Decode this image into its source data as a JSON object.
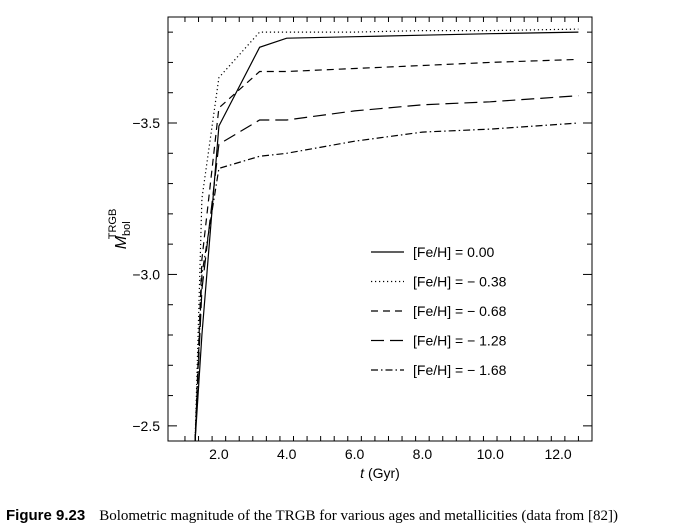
{
  "caption": {
    "label": "Figure 9.23",
    "text": "Bolometric magnitude of the TRGB for various ages and metallicities (data from [82])"
  },
  "chart_data": {
    "type": "line",
    "title": "",
    "xlabel_var": "t",
    "xlabel_unit": " (Gyr)",
    "ylabel_var": "M",
    "ylabel_sub": "bol",
    "ylabel_sup": "TRGB",
    "xlim": [
      0.5,
      13.0
    ],
    "ylim": [
      -2.45,
      -3.85
    ],
    "y_reversed": true,
    "xticks": [
      2.0,
      4.0,
      6.0,
      8.0,
      10.0,
      12.0
    ],
    "xtick_labels": [
      "2.0",
      "4.0",
      "6.0",
      "8.0",
      "10.0",
      "12.0"
    ],
    "yticks": [
      -2.5,
      -3.0,
      -3.5
    ],
    "ytick_labels": [
      "−2.5",
      "−3.0",
      "−3.5"
    ],
    "grid": false,
    "legend_position": "center-right",
    "series": [
      {
        "name": "[Fe/H] = 0.00",
        "dash": "solid",
        "x": [
          1.3,
          1.5,
          2.0,
          3.2,
          4.0,
          6.0,
          8.0,
          10.0,
          12.6
        ],
        "y": [
          -2.45,
          -2.8,
          -3.49,
          -3.75,
          -3.78,
          -3.785,
          -3.79,
          -3.795,
          -3.8
        ]
      },
      {
        "name": "[Fe/H] = − 0.38",
        "dash": "dotted",
        "x": [
          1.3,
          1.5,
          2.0,
          3.2,
          4.0,
          6.0,
          8.0,
          10.0,
          12.6
        ],
        "y": [
          -2.45,
          -3.25,
          -3.65,
          -3.8,
          -3.8,
          -3.8,
          -3.805,
          -3.805,
          -3.81
        ]
      },
      {
        "name": "[Fe/H] = − 0.68",
        "dash": "short-dash",
        "x": [
          1.3,
          1.5,
          2.0,
          3.2,
          4.0,
          6.0,
          8.0,
          10.0,
          12.6
        ],
        "y": [
          -2.45,
          -3.05,
          -3.55,
          -3.67,
          -3.67,
          -3.68,
          -3.69,
          -3.7,
          -3.71
        ]
      },
      {
        "name": "[Fe/H] = − 1.28",
        "dash": "long-dash",
        "x": [
          1.3,
          1.5,
          2.0,
          3.2,
          4.0,
          6.0,
          8.0,
          10.0,
          12.6
        ],
        "y": [
          -2.45,
          -2.95,
          -3.43,
          -3.51,
          -3.51,
          -3.54,
          -3.56,
          -3.57,
          -3.59
        ]
      },
      {
        "name": "[Fe/H] = − 1.68",
        "dash": "dash-dot",
        "x": [
          1.3,
          1.5,
          2.0,
          3.2,
          4.0,
          6.0,
          8.0,
          10.0,
          12.6
        ],
        "y": [
          -2.45,
          -3.0,
          -3.35,
          -3.39,
          -3.4,
          -3.44,
          -3.47,
          -3.48,
          -3.5
        ]
      }
    ]
  }
}
